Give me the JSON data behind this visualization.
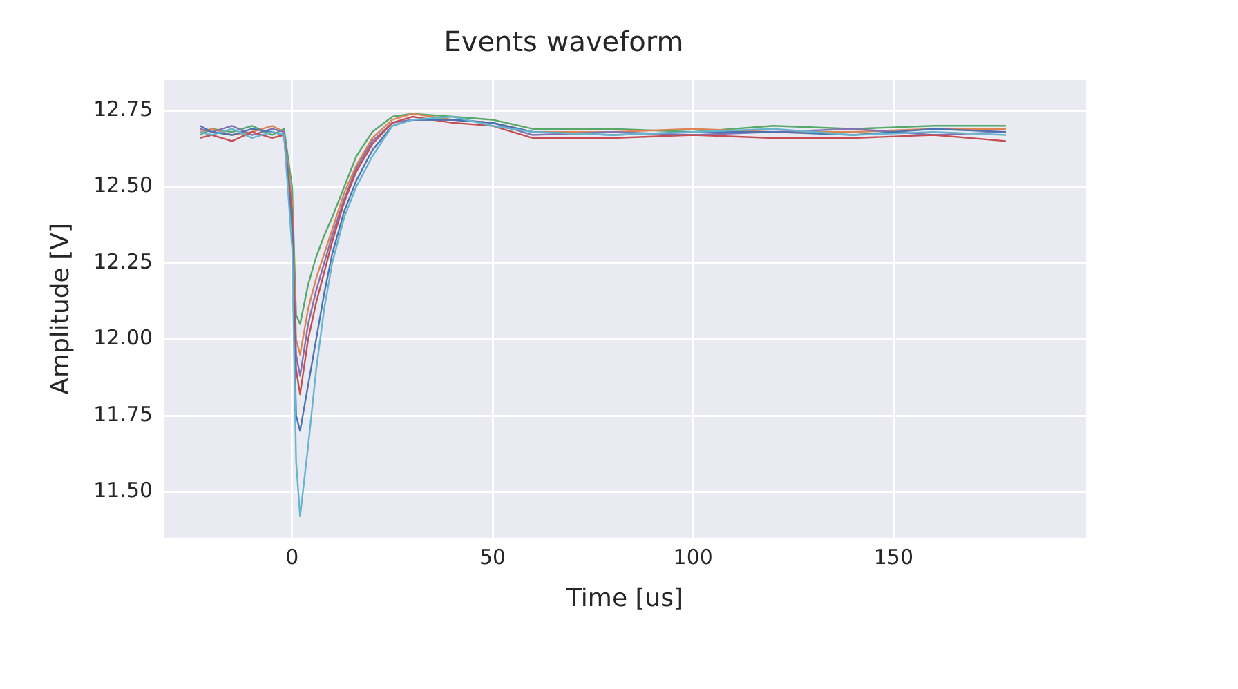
{
  "chart_data": {
    "type": "line",
    "title": "Events waveform",
    "xlabel": "Time [us]",
    "ylabel": "Amplitude [V]",
    "x": [
      -23,
      -20,
      -15,
      -10,
      -5,
      -2,
      0,
      1,
      2,
      4,
      6,
      8,
      10,
      13,
      16,
      20,
      25,
      30,
      40,
      50,
      60,
      80,
      100,
      120,
      140,
      160,
      178
    ],
    "series": [
      {
        "color": "#64b5cd",
        "values": [
          12.68,
          12.67,
          12.69,
          12.66,
          12.68,
          12.67,
          12.3,
          11.6,
          11.42,
          11.65,
          11.9,
          12.1,
          12.25,
          12.4,
          12.5,
          12.6,
          12.7,
          12.72,
          12.73,
          12.7,
          12.68,
          12.67,
          12.68,
          12.69,
          12.67,
          12.68,
          12.67
        ]
      },
      {
        "color": "#4c72b0",
        "values": [
          12.7,
          12.68,
          12.67,
          12.69,
          12.68,
          12.67,
          12.35,
          11.75,
          11.7,
          11.85,
          12.0,
          12.15,
          12.28,
          12.42,
          12.52,
          12.62,
          12.7,
          12.72,
          12.72,
          12.71,
          12.68,
          12.67,
          12.68,
          12.68,
          12.67,
          12.69,
          12.68
        ]
      },
      {
        "color": "#c44e52",
        "values": [
          12.66,
          12.67,
          12.65,
          12.68,
          12.66,
          12.67,
          12.4,
          11.9,
          11.82,
          12.0,
          12.12,
          12.22,
          12.32,
          12.45,
          12.55,
          12.64,
          12.71,
          12.73,
          12.71,
          12.7,
          12.66,
          12.66,
          12.67,
          12.66,
          12.66,
          12.67,
          12.65
        ]
      },
      {
        "color": "#8172b3",
        "values": [
          12.69,
          12.68,
          12.7,
          12.67,
          12.69,
          12.68,
          12.42,
          11.95,
          11.88,
          12.05,
          12.16,
          12.25,
          12.34,
          12.46,
          12.56,
          12.65,
          12.71,
          12.72,
          12.72,
          12.71,
          12.67,
          12.68,
          12.67,
          12.68,
          12.69,
          12.67,
          12.68
        ]
      },
      {
        "color": "#dd8452",
        "values": [
          12.68,
          12.69,
          12.67,
          12.68,
          12.7,
          12.68,
          12.45,
          12.0,
          11.95,
          12.1,
          12.2,
          12.28,
          12.36,
          12.48,
          12.57,
          12.66,
          12.72,
          12.74,
          12.72,
          12.71,
          12.68,
          12.68,
          12.69,
          12.68,
          12.68,
          12.69,
          12.69
        ]
      },
      {
        "color": "#55a868",
        "values": [
          12.67,
          12.69,
          12.68,
          12.7,
          12.67,
          12.69,
          12.5,
          12.08,
          12.05,
          12.18,
          12.27,
          12.34,
          12.4,
          12.5,
          12.6,
          12.68,
          12.73,
          12.74,
          12.73,
          12.72,
          12.69,
          12.69,
          12.68,
          12.7,
          12.69,
          12.7,
          12.7
        ]
      }
    ],
    "xlim": [
      -32,
      198
    ],
    "ylim": [
      11.35,
      12.85
    ],
    "xticks": [
      0,
      50,
      100,
      150
    ],
    "yticks": [
      {
        "value": 11.5,
        "label": "11.50"
      },
      {
        "value": 11.75,
        "label": "11.75"
      },
      {
        "value": 12,
        "label": "12.00"
      },
      {
        "value": 12.25,
        "label": "12.25"
      },
      {
        "value": 12.5,
        "label": "12.50"
      },
      {
        "value": 12.75,
        "label": "12.75"
      }
    ],
    "grid": true
  }
}
